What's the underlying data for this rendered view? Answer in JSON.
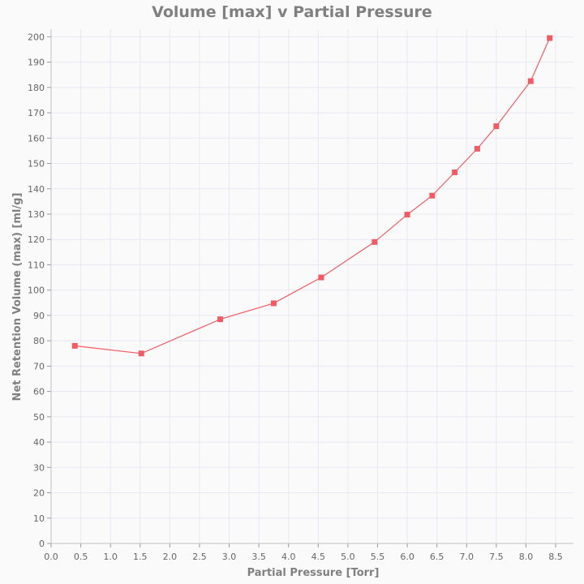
{
  "chart_data": {
    "type": "line",
    "title": "Volume [max] v Partial Pressure",
    "xlabel": "Partial Pressure [Torr]",
    "ylabel": "Net Retention Volume (max) [ml/g]",
    "xlim": [
      0,
      8.8
    ],
    "ylim": [
      0,
      203
    ],
    "x_ticks": [
      "0.0",
      "0.5",
      "1.0",
      "1.5",
      "2.0",
      "2.5",
      "3.0",
      "3.5",
      "4.0",
      "4.5",
      "5.0",
      "5.5",
      "6.0",
      "6.5",
      "7.0",
      "7.5",
      "8.0",
      "8.5"
    ],
    "y_ticks": [
      "0",
      "10",
      "20",
      "30",
      "40",
      "50",
      "60",
      "70",
      "80",
      "90",
      "100",
      "110",
      "120",
      "130",
      "140",
      "150",
      "160",
      "170",
      "180",
      "190",
      "200"
    ],
    "grid": true,
    "series": [
      {
        "color": "#f25b63",
        "marker": "square",
        "x": [
          0.4,
          1.52,
          2.85,
          3.75,
          4.55,
          5.45,
          6.0,
          6.42,
          6.8,
          7.18,
          7.5,
          8.08,
          8.4
        ],
        "y": [
          78,
          75,
          88.5,
          94.8,
          105,
          119,
          129.8,
          137.3,
          146.5,
          155.8,
          164.7,
          182.5,
          199.5
        ]
      }
    ]
  }
}
